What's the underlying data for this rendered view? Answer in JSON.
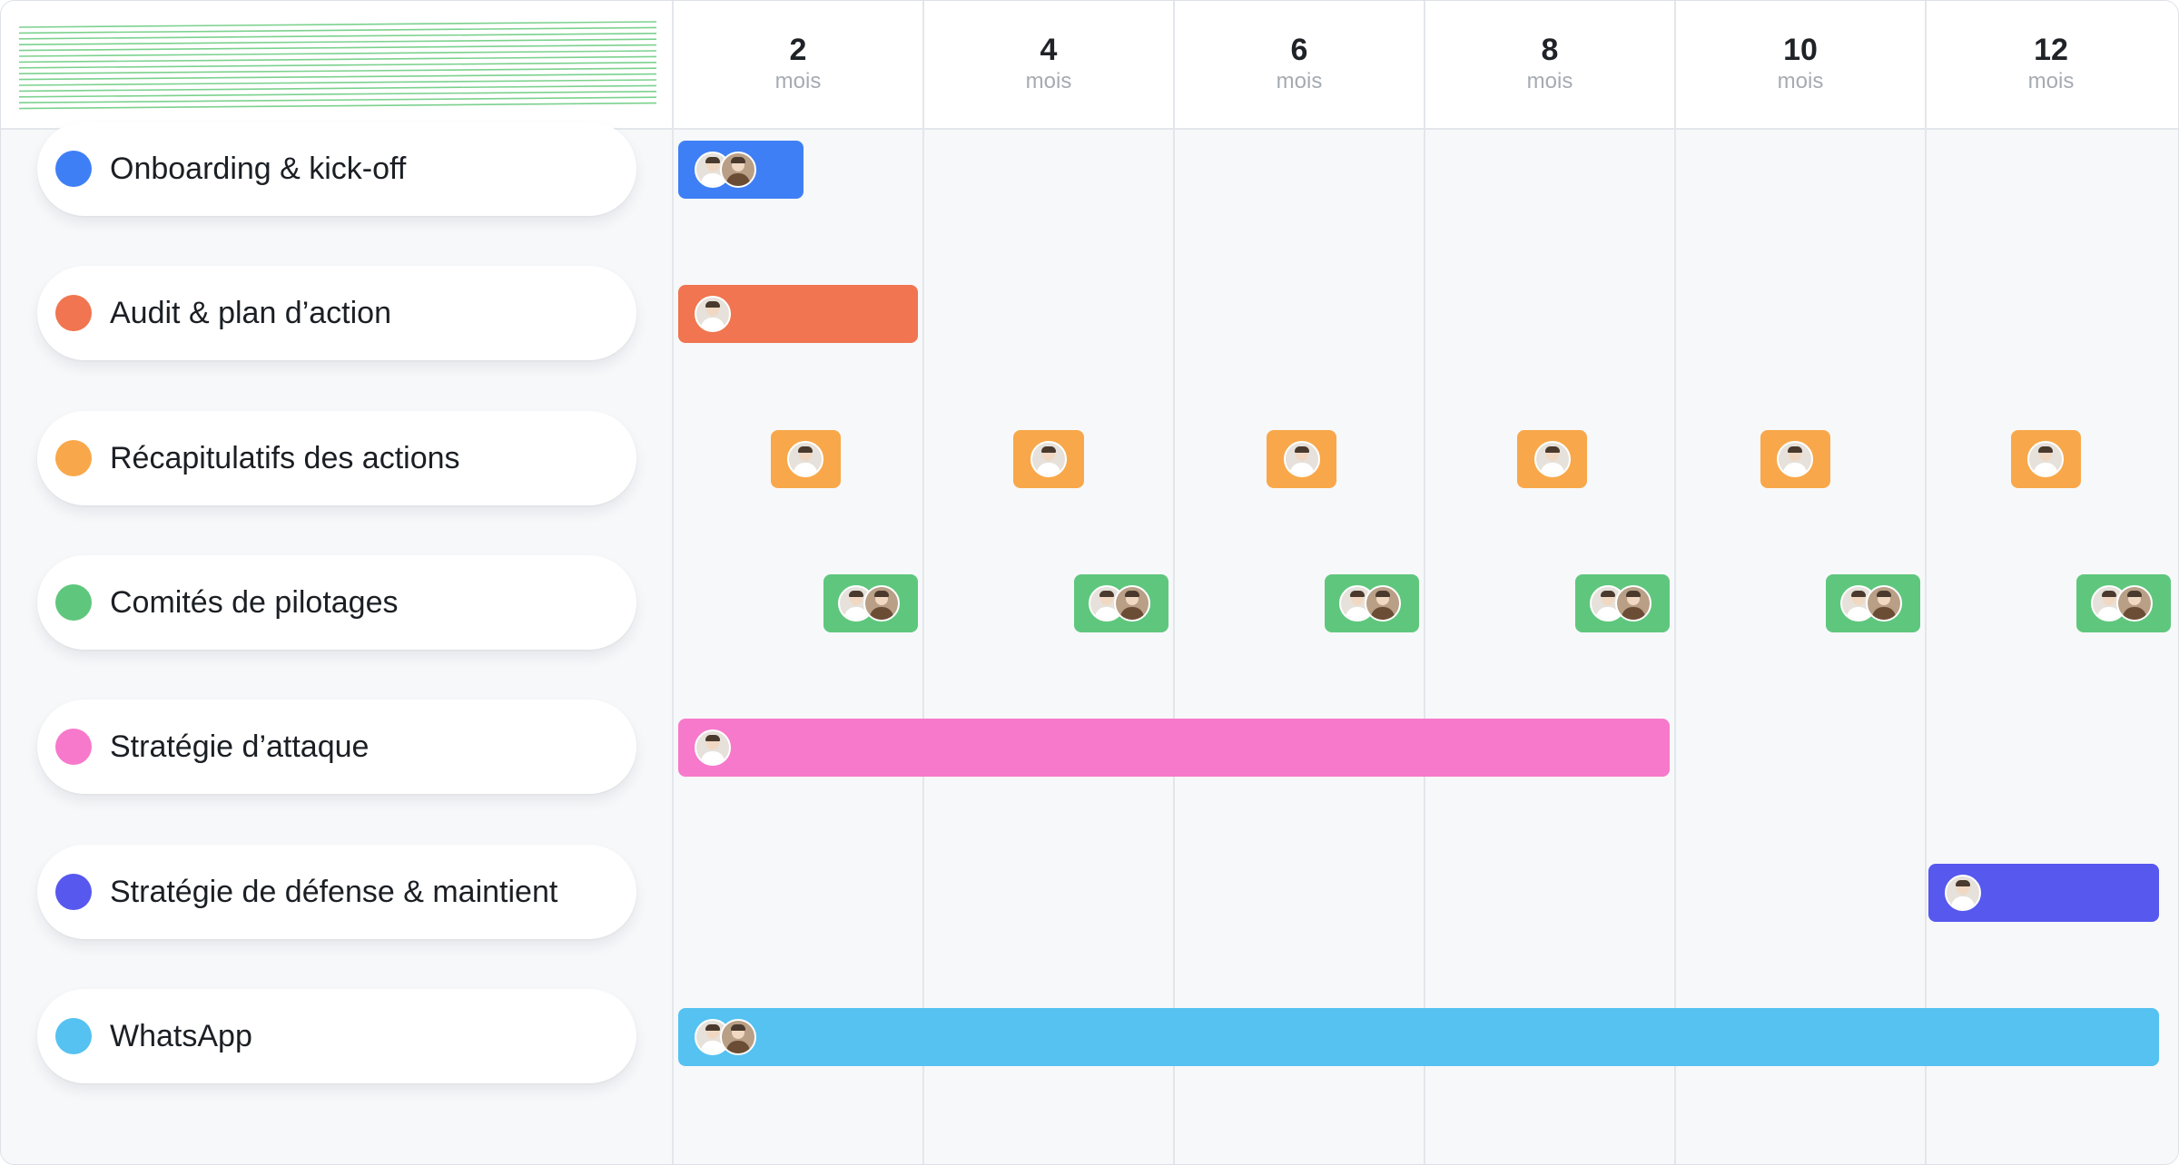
{
  "chart_data": {
    "type": "gantt",
    "x_axis": {
      "unit": "mois",
      "ticks": [
        2,
        4,
        6,
        8,
        10,
        12
      ],
      "range": [
        1,
        13
      ]
    },
    "tasks": [
      {
        "name": "Onboarding & kick-off",
        "color": "#3f7ff6",
        "segments": [
          {
            "start": 1.02,
            "end": 1.52,
            "avatars": 2
          }
        ]
      },
      {
        "name": "Audit & plan d’action",
        "color": "#f07550",
        "segments": [
          {
            "start": 1.02,
            "end": 1.98,
            "avatars": 1
          }
        ]
      },
      {
        "name": "Récapitulatifs des actions",
        "color": "#f8a84a",
        "segments": [
          {
            "start": 1.39,
            "end": 1.67,
            "avatars": 1
          },
          {
            "start": 2.36,
            "end": 2.64,
            "avatars": 1
          },
          {
            "start": 3.37,
            "end": 3.65,
            "avatars": 1
          },
          {
            "start": 4.37,
            "end": 4.65,
            "avatars": 1
          },
          {
            "start": 5.34,
            "end": 5.62,
            "avatars": 1
          },
          {
            "start": 6.34,
            "end": 6.62,
            "avatars": 1
          }
        ]
      },
      {
        "name": "Comités de pilotages",
        "color": "#5fc77d",
        "segments": [
          {
            "start": 1.6,
            "end": 1.98,
            "avatars": 2
          },
          {
            "start": 2.6,
            "end": 2.98,
            "avatars": 2
          },
          {
            "start": 3.6,
            "end": 3.98,
            "avatars": 2
          },
          {
            "start": 4.6,
            "end": 4.98,
            "avatars": 2
          },
          {
            "start": 5.6,
            "end": 5.98,
            "avatars": 2
          },
          {
            "start": 6.6,
            "end": 6.98,
            "avatars": 2
          }
        ]
      },
      {
        "name": "Stratégie d’attaque",
        "color": "#f779cb",
        "segments": [
          {
            "start": 1.02,
            "end": 4.98,
            "avatars": 1
          }
        ]
      },
      {
        "name": "Stratégie de défense & maintient",
        "color": "#5658ee",
        "segments": [
          {
            "start": 6.01,
            "end": 6.93,
            "avatars": 1
          }
        ]
      },
      {
        "name": "WhatsApp",
        "color": "#55c2f1",
        "segments": [
          {
            "start": 1.02,
            "end": 6.93,
            "avatars": 2
          }
        ]
      }
    ]
  },
  "header": {
    "months": [
      {
        "num": "2",
        "unit": "mois"
      },
      {
        "num": "4",
        "unit": "mois"
      },
      {
        "num": "6",
        "unit": "mois"
      },
      {
        "num": "8",
        "unit": "mois"
      },
      {
        "num": "10",
        "unit": "mois"
      },
      {
        "num": "12",
        "unit": "mois"
      }
    ]
  },
  "colors": {
    "grid_line": "#e3e6ea",
    "stripe": "#7cd18f",
    "background": "#f7f8fa"
  }
}
